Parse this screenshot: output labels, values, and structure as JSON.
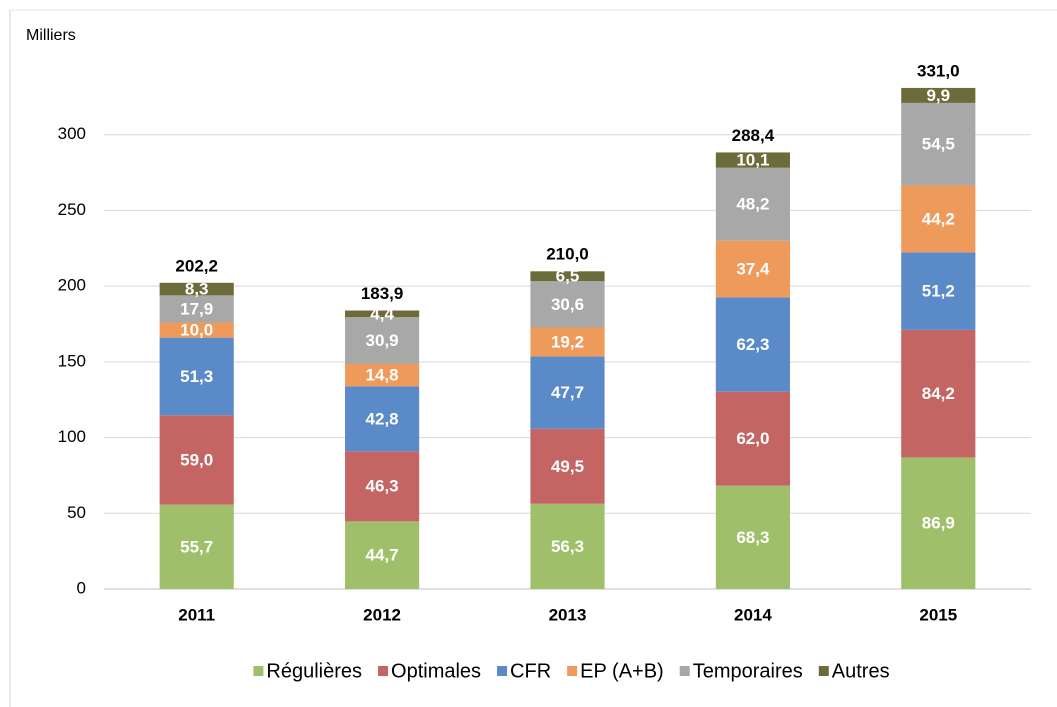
{
  "chart_data": {
    "type": "stacked_bar",
    "y_label": "Milliers",
    "categories": [
      "2011",
      "2012",
      "2013",
      "2014",
      "2015"
    ],
    "series": [
      {
        "name": "Régulières",
        "color": "#9fbf6a",
        "values": [
          55.7,
          44.7,
          56.3,
          68.3,
          86.9
        ],
        "value_labels": [
          "55,7",
          "44,7",
          "56,3",
          "68,3",
          "86,9"
        ]
      },
      {
        "name": "Optimales",
        "color": "#c46563",
        "values": [
          59.0,
          46.3,
          49.5,
          62.0,
          84.2
        ],
        "value_labels": [
          "59,0",
          "46,3",
          "49,5",
          "62,0",
          "84,2"
        ]
      },
      {
        "name": "CFR",
        "color": "#5b8ac9",
        "values": [
          51.3,
          42.8,
          47.7,
          62.3,
          51.2
        ],
        "value_labels": [
          "51,3",
          "42,8",
          "47,7",
          "62,3",
          "51,2"
        ]
      },
      {
        "name": "EP (A+B)",
        "color": "#ee9a5a",
        "values": [
          10.0,
          14.8,
          19.2,
          37.4,
          44.2
        ],
        "value_labels": [
          "10,0",
          "14,8",
          "19,2",
          "37,4",
          "44,2"
        ]
      },
      {
        "name": "Temporaires",
        "color": "#a8a8a8",
        "values": [
          17.9,
          30.9,
          30.6,
          48.2,
          54.5
        ],
        "value_labels": [
          "17,9",
          "30,9",
          "30,6",
          "48,2",
          "54,5"
        ]
      },
      {
        "name": "Autres",
        "color": "#6e6b3a",
        "values": [
          8.3,
          4.4,
          6.5,
          10.1,
          9.9
        ],
        "value_labels": [
          "8,3",
          "4,4",
          "6,5",
          "10,1",
          "9,9"
        ]
      }
    ],
    "totals": [
      202.2,
      183.9,
      210.0,
      288.4,
      331.0
    ],
    "total_labels": [
      "202,2",
      "183,9",
      "210,0",
      "288,4",
      "331,0"
    ],
    "ylim": [
      0,
      350
    ],
    "yticks": [
      0,
      50,
      100,
      150,
      200,
      250,
      300
    ],
    "grid": true
  }
}
